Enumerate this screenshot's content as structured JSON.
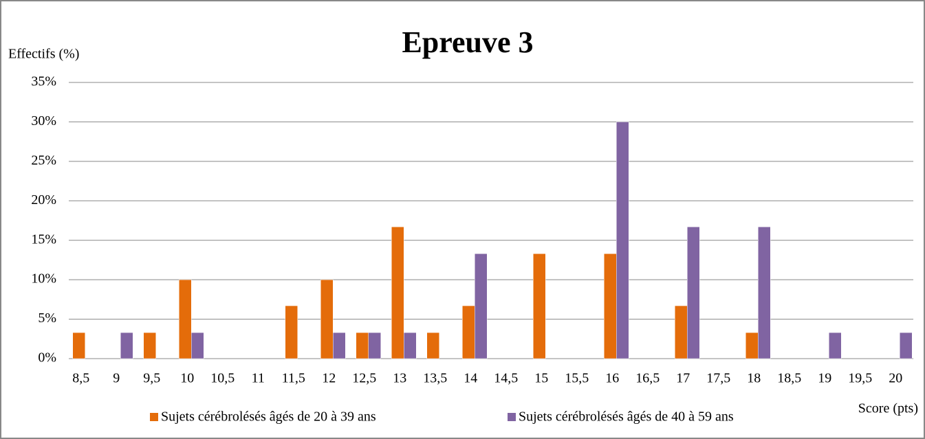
{
  "chart_data": {
    "type": "bar",
    "title": "Epreuve 3",
    "y_label": "Effectifs (%)",
    "x_label": "Score (pts)",
    "categories": [
      "8,5",
      "9",
      "9,5",
      "10",
      "10,5",
      "11",
      "11,5",
      "12",
      "12,5",
      "13",
      "13,5",
      "14",
      "14,5",
      "15",
      "15,5",
      "16",
      "16,5",
      "17",
      "17,5",
      "18",
      "18,5",
      "19",
      "19,5",
      "20"
    ],
    "series": [
      {
        "name": "Sujets cérébrolésés âgés de 20 à 39 ans",
        "color": "#e46c0a",
        "values": [
          3.3,
          0,
          3.3,
          10,
          0,
          0,
          6.7,
          10,
          3.3,
          16.7,
          3.3,
          6.7,
          0,
          13.3,
          0,
          13.3,
          0,
          6.7,
          0,
          3.3,
          0,
          0,
          0,
          0
        ]
      },
      {
        "name": "Sujets cérébrolésés âgés de 40 à 59 ans",
        "color": "#8064a2",
        "values": [
          0,
          3.3,
          0,
          3.3,
          0,
          0,
          0,
          3.3,
          3.3,
          3.3,
          0,
          13.3,
          0,
          0,
          0,
          30,
          0,
          16.7,
          0,
          16.7,
          0,
          3.3,
          0,
          3.3
        ]
      }
    ],
    "ylim": [
      0,
      35
    ],
    "yticks": [
      {
        "value": 0,
        "label": "0%"
      },
      {
        "value": 5,
        "label": "5%"
      },
      {
        "value": 10,
        "label": "10%"
      },
      {
        "value": 15,
        "label": "15%"
      },
      {
        "value": 20,
        "label": "20%"
      },
      {
        "value": 25,
        "label": "25%"
      },
      {
        "value": 30,
        "label": "30%"
      },
      {
        "value": 35,
        "label": "35%"
      }
    ],
    "grid": true,
    "legend": "bottom"
  }
}
